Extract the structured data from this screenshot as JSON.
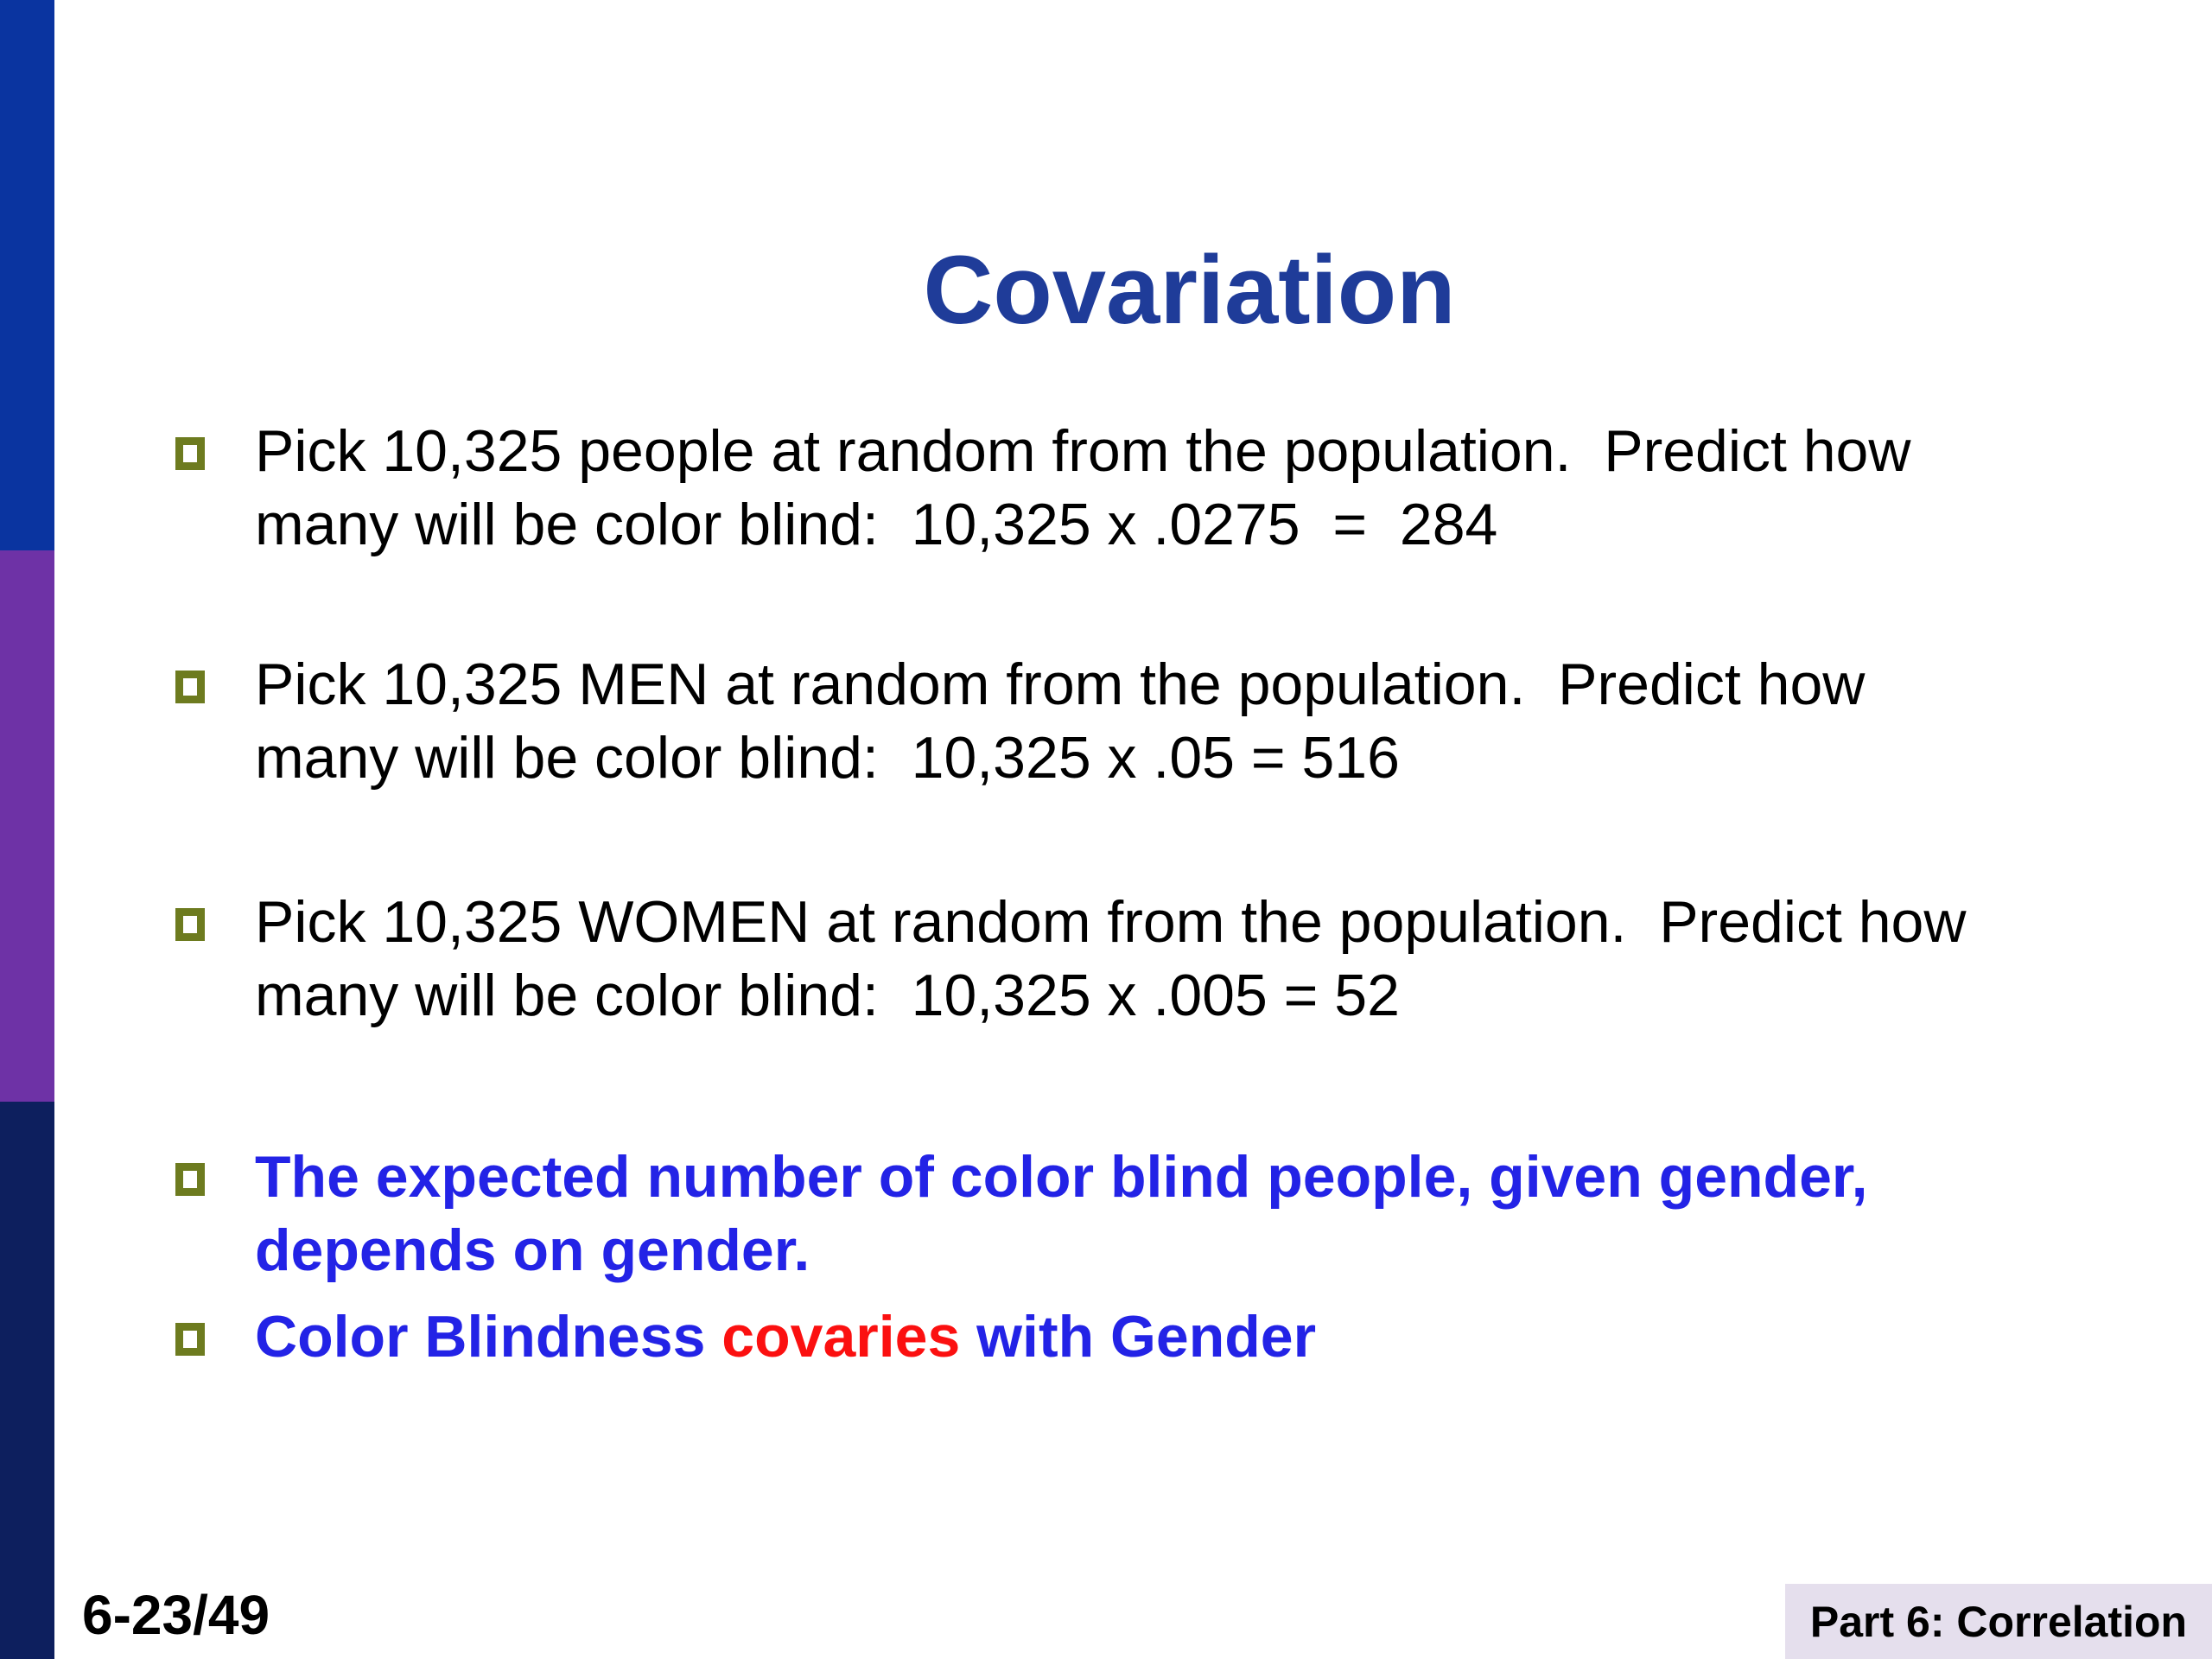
{
  "slide": {
    "title": "Covariation"
  },
  "bullets": [
    {
      "text": "Pick 10,325 people at random from the population.  Predict how\nmany will be color blind:  10,325 x .0275  =  284",
      "style": "normal"
    },
    {
      "text": "Pick 10,325 MEN at random from the population.  Predict how\nmany will be color blind:  10,325 x .05 = 516",
      "style": "normal"
    },
    {
      "text": "Pick 10,325 WOMEN at random from the population.  Predict how\nmany will be color blind:  10,325 x .005 = 52",
      "style": "normal"
    },
    {
      "text": "The expected number of color blind people, given gender,\ndepends on gender.",
      "style": "blue-bold"
    },
    {
      "part1": "Color Blindness ",
      "highlight": "covaries",
      "part2": " with Gender",
      "style": "blue-bold-with-red-word"
    }
  ],
  "footer": {
    "slide_number": "6-23/49",
    "section_label": "Part 6: Correlation"
  },
  "colors": {
    "title_blue": "#1F3C99",
    "body_text": "#000000",
    "emphasis_blue": "#2323E6",
    "emphasis_red": "#FB1010",
    "bullet_olive": "#6D7B1F",
    "bar_top_blue": "#0A34A0",
    "bar_mid_purple": "#6E32A6",
    "bar_bottom_navy": "#0D1F5E",
    "footer_box_lavender": "#E5DFED"
  },
  "icons": {
    "bullet_marker": "hollow-square"
  }
}
